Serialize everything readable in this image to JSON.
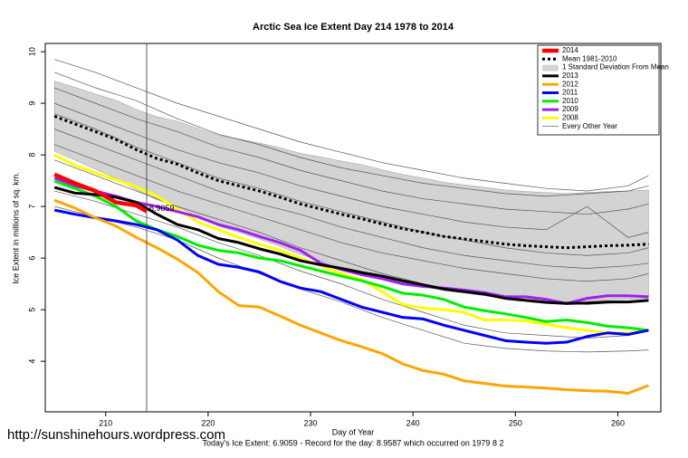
{
  "chart_data": {
    "type": "line",
    "title": "Arctic Sea Ice Extent Day 214 1978 to 2014",
    "x_label": "Day of Year",
    "y_label": "Ice Extent in millions of sq. km.",
    "footer": "Today's Ice Extent: 6.9059  - Record for the day: 8.9587 which occurred on 1979 8 2",
    "watermark": "http://sunshinehours.wordpress.com",
    "xlim": [
      204.1,
      264.2
    ],
    "ylim": [
      3.02,
      10.16
    ],
    "xticks": [
      210,
      220,
      230,
      240,
      250,
      260
    ],
    "yticks": [
      4,
      5,
      6,
      7,
      8,
      9,
      10
    ],
    "legend": "topright",
    "vline": 214,
    "annotation": {
      "x": 214,
      "value": 6.9059,
      "color": "#b03cb0"
    },
    "x": [
      205,
      207,
      209,
      211,
      213,
      215,
      217,
      219,
      221,
      223,
      225,
      227,
      229,
      231,
      233,
      235,
      237,
      239,
      241,
      243,
      245,
      247,
      249,
      251,
      253,
      255,
      257,
      259,
      261,
      263
    ],
    "series": [
      {
        "name": "2014",
        "color": "#ff0000",
        "style": "thick",
        "x": [
          205,
          207,
          209,
          211,
          213,
          214
        ],
        "values": [
          7.62,
          7.45,
          7.3,
          7.08,
          7.02,
          6.9059
        ]
      },
      {
        "name": "Mean 1981-2010",
        "color": "#000000",
        "style": "dotted",
        "values": [
          8.75,
          8.6,
          8.45,
          8.3,
          8.1,
          7.93,
          7.82,
          7.65,
          7.5,
          7.4,
          7.3,
          7.18,
          7.05,
          6.95,
          6.85,
          6.76,
          6.66,
          6.57,
          6.5,
          6.42,
          6.37,
          6.32,
          6.27,
          6.24,
          6.22,
          6.2,
          6.22,
          6.24,
          6.25,
          6.27
        ]
      },
      {
        "name": "1 Standard Deviation From Mean",
        "color": "#d3d3d3",
        "style": "band",
        "upper": [
          9.43,
          9.31,
          9.18,
          9.06,
          8.88,
          8.74,
          8.65,
          8.51,
          8.38,
          8.31,
          8.23,
          8.14,
          8.03,
          7.96,
          7.88,
          7.81,
          7.71,
          7.62,
          7.55,
          7.47,
          7.42,
          7.37,
          7.32,
          7.29,
          7.27,
          7.25,
          7.27,
          7.29,
          7.3,
          7.32
        ],
        "lower": [
          8.07,
          7.9,
          7.72,
          7.55,
          7.32,
          7.13,
          6.99,
          6.8,
          6.62,
          6.5,
          6.37,
          6.23,
          6.07,
          5.95,
          5.82,
          5.71,
          5.61,
          5.52,
          5.45,
          5.37,
          5.32,
          5.27,
          5.22,
          5.19,
          5.17,
          5.15,
          5.17,
          5.19,
          5.2,
          5.22
        ]
      },
      {
        "name": "2013",
        "color": "#000000",
        "style": "line",
        "values": [
          7.37,
          7.26,
          7.23,
          7.18,
          7.08,
          6.85,
          6.65,
          6.55,
          6.38,
          6.3,
          6.18,
          6.08,
          5.95,
          5.87,
          5.8,
          5.72,
          5.65,
          5.56,
          5.48,
          5.4,
          5.35,
          5.3,
          5.22,
          5.18,
          5.14,
          5.12,
          5.13,
          5.15,
          5.15,
          5.18
        ]
      },
      {
        "name": "2012",
        "color": "#ffa500",
        "style": "line",
        "values": [
          7.12,
          6.97,
          6.78,
          6.62,
          6.4,
          6.2,
          5.98,
          5.72,
          5.35,
          5.08,
          5.05,
          4.88,
          4.7,
          4.55,
          4.4,
          4.28,
          4.15,
          3.95,
          3.82,
          3.75,
          3.62,
          3.57,
          3.52,
          3.5,
          3.48,
          3.45,
          3.43,
          3.42,
          3.38,
          3.53
        ]
      },
      {
        "name": "2011",
        "color": "#0000ff",
        "style": "line",
        "values": [
          6.93,
          6.85,
          6.78,
          6.72,
          6.65,
          6.55,
          6.35,
          6.05,
          5.88,
          5.82,
          5.73,
          5.55,
          5.42,
          5.35,
          5.2,
          5.05,
          4.95,
          4.85,
          4.82,
          4.7,
          4.6,
          4.5,
          4.4,
          4.37,
          4.35,
          4.37,
          4.48,
          4.55,
          4.52,
          4.6
        ]
      },
      {
        "name": "2010",
        "color": "#00ee00",
        "style": "line",
        "values": [
          7.49,
          7.35,
          7.2,
          7.0,
          6.72,
          6.55,
          6.42,
          6.25,
          6.15,
          6.1,
          6.0,
          5.95,
          5.85,
          5.75,
          5.65,
          5.56,
          5.45,
          5.32,
          5.28,
          5.2,
          5.05,
          4.98,
          4.92,
          4.85,
          4.77,
          4.8,
          4.75,
          4.68,
          4.65,
          4.6
        ]
      },
      {
        "name": "2009",
        "color": "#a020f0",
        "style": "line",
        "values": [
          7.55,
          7.4,
          7.3,
          7.2,
          7.08,
          7.0,
          6.9,
          6.8,
          6.65,
          6.55,
          6.42,
          6.3,
          6.15,
          5.9,
          5.78,
          5.68,
          5.6,
          5.5,
          5.45,
          5.42,
          5.38,
          5.33,
          5.25,
          5.25,
          5.2,
          5.12,
          5.22,
          5.27,
          5.27,
          5.25
        ]
      },
      {
        "name": "2008",
        "color": "#ffff00",
        "style": "line",
        "values": [
          8.0,
          7.8,
          7.65,
          7.52,
          7.38,
          7.2,
          6.95,
          6.7,
          6.55,
          6.4,
          6.27,
          6.15,
          6.0,
          5.85,
          5.7,
          5.58,
          5.35,
          5.1,
          5.03,
          5.0,
          4.95,
          4.8,
          4.8,
          4.78,
          4.72,
          4.65,
          4.6,
          4.55,
          4.55,
          4.6
        ]
      },
      {
        "name": "Every Other Year",
        "color": "#555555",
        "style": "thin",
        "x": [
          205,
          209,
          213,
          217,
          221,
          225,
          229,
          233,
          237,
          241,
          245,
          249,
          253,
          257,
          261,
          263
        ],
        "lines": [
          [
            9.85,
            9.6,
            9.3,
            9.0,
            8.75,
            8.5,
            8.25,
            8.05,
            7.85,
            7.7,
            7.55,
            7.45,
            7.35,
            7.3,
            7.4,
            7.6
          ],
          [
            9.6,
            9.3,
            9.05,
            8.7,
            8.4,
            8.2,
            7.95,
            7.75,
            7.6,
            7.45,
            7.35,
            7.25,
            7.2,
            7.25,
            7.3,
            7.4
          ],
          [
            9.3,
            9.0,
            8.7,
            8.45,
            8.15,
            7.95,
            7.7,
            7.5,
            7.3,
            7.15,
            7.05,
            6.95,
            6.9,
            6.85,
            6.95,
            7.05
          ],
          [
            9.0,
            8.7,
            8.4,
            8.1,
            7.85,
            7.65,
            7.4,
            7.2,
            7.0,
            6.85,
            6.7,
            6.6,
            6.55,
            7.0,
            6.4,
            6.5
          ],
          [
            8.8,
            8.5,
            8.15,
            7.85,
            7.55,
            7.35,
            7.1,
            6.9,
            6.7,
            6.5,
            6.35,
            6.2,
            6.1,
            6.05,
            6.1,
            6.2
          ],
          [
            8.5,
            8.2,
            7.9,
            7.6,
            7.3,
            7.05,
            6.85,
            6.6,
            6.4,
            6.2,
            6.05,
            5.95,
            5.85,
            5.8,
            5.85,
            5.9
          ],
          [
            8.2,
            7.9,
            7.6,
            7.3,
            7.05,
            6.8,
            6.55,
            6.3,
            6.1,
            5.95,
            5.8,
            5.7,
            5.6,
            5.55,
            5.6,
            5.7
          ],
          [
            7.9,
            7.6,
            7.3,
            7.0,
            6.75,
            6.5,
            6.2,
            5.95,
            5.7,
            5.5,
            5.35,
            5.25,
            5.15,
            5.1,
            5.15,
            5.2
          ],
          [
            7.3,
            7.1,
            6.85,
            6.6,
            6.3,
            6.05,
            5.75,
            5.5,
            5.2,
            4.95,
            4.7,
            4.55,
            4.5,
            4.45,
            4.5,
            4.6
          ],
          [
            7.0,
            6.8,
            6.6,
            6.35,
            6.0,
            5.7,
            5.4,
            5.15,
            4.85,
            4.6,
            4.35,
            4.25,
            4.2,
            4.18,
            4.2,
            4.22
          ]
        ]
      }
    ]
  }
}
